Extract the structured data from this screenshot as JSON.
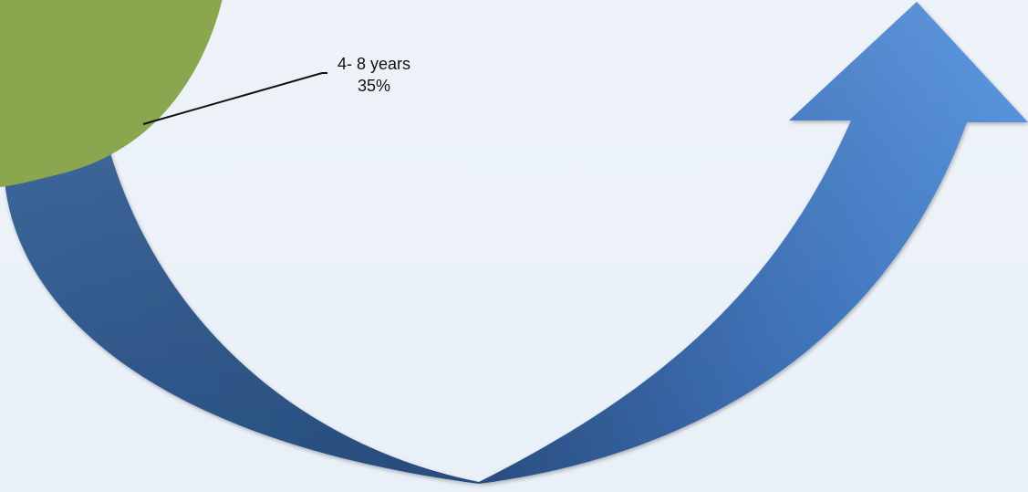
{
  "chart_data": {
    "type": "pie",
    "slices": [
      {
        "label": "4- 8 years",
        "percent_label": "35%",
        "value": 35,
        "color": "#8aa64e"
      }
    ]
  },
  "decorations": {
    "arrow_color_dark": "#2b5185",
    "arrow_color_light": "#4a8ddf",
    "arrow_icon": "curved-up-arrow",
    "leader_line_color": "#111111"
  }
}
